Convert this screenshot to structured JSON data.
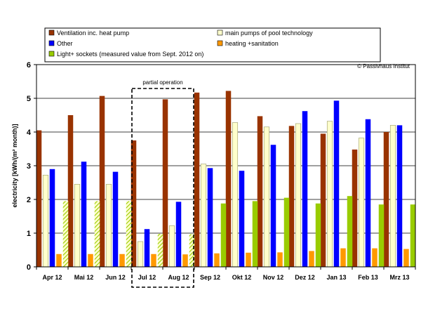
{
  "chart_data": {
    "type": "bar",
    "title": "",
    "ylabel": "electricity [kWh/(m² month)]",
    "xlabel": "",
    "ylim": [
      0,
      6
    ],
    "yticks": [
      0,
      1,
      2,
      3,
      4,
      5,
      6
    ],
    "grid": true,
    "legend_position": "top",
    "categories": [
      "Apr 12",
      "Mai 12",
      "Jun 12",
      "Jul 12",
      "Aug 12",
      "Sep 12",
      "Okt 12",
      "Nov 12",
      "Dez 12",
      "Jan 13",
      "Feb 13",
      "Mrz 13"
    ],
    "series": [
      {
        "name": "Ventilation inc. heat pump",
        "color": "#993300",
        "values": [
          4.05,
          4.5,
          5.07,
          3.75,
          4.97,
          5.17,
          5.22,
          4.47,
          4.18,
          3.95,
          3.48,
          4.0
        ]
      },
      {
        "name": "main pumps of pool technology",
        "color": "#ffffcc",
        "values": [
          2.72,
          2.45,
          2.45,
          0.75,
          1.22,
          3.05,
          4.28,
          4.15,
          4.25,
          4.32,
          3.82,
          4.2
        ]
      },
      {
        "name": "Other",
        "color": "#0000ff",
        "values": [
          2.9,
          3.12,
          2.82,
          1.12,
          1.93,
          2.93,
          2.85,
          3.62,
          4.62,
          4.93,
          4.38,
          4.2
        ]
      },
      {
        "name": "heating +sanitation",
        "color": "#ff9900",
        "values": [
          0.38,
          0.38,
          0.38,
          0.38,
          0.37,
          0.4,
          0.42,
          0.43,
          0.47,
          0.55,
          0.55,
          0.53
        ]
      },
      {
        "name": "Light+ sockets (measured value from Sept. 2012 on)",
        "color": "#99cc00",
        "values": [
          1.95,
          1.95,
          1.95,
          0.98,
          0.97,
          1.88,
          1.95,
          2.05,
          1.88,
          2.1,
          1.85,
          1.85
        ],
        "hatched_categories": [
          "Apr 12",
          "Mai 12",
          "Jun 12",
          "Jul 12",
          "Aug 12"
        ]
      }
    ],
    "annotations": [
      {
        "text": "partial operation",
        "categories": [
          "Jul 12",
          "Aug 12"
        ]
      }
    ],
    "copyright": "© Passivhaus Institut"
  }
}
